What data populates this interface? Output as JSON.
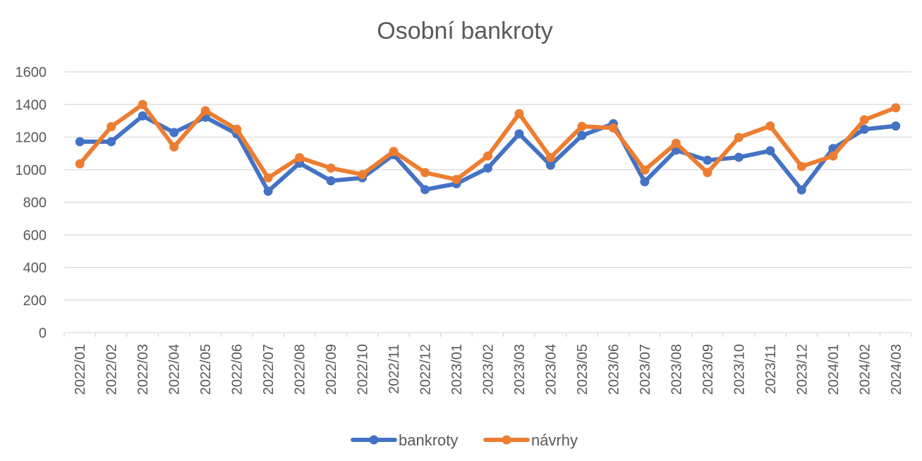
{
  "chart_data": {
    "type": "line",
    "title": "Osobní bankroty",
    "xlabel": "",
    "ylabel": "",
    "ylim": [
      0,
      1600
    ],
    "yticks": [
      0,
      200,
      400,
      600,
      800,
      1000,
      1200,
      1400,
      1600
    ],
    "grid": true,
    "legend_position": "bottom",
    "categories": [
      "2022/01",
      "2022/02",
      "2022/03",
      "2022/04",
      "2022/05",
      "2022/06",
      "2022/07",
      "2022/08",
      "2022/09",
      "2022/10",
      "2022/11",
      "2022/12",
      "2023/01",
      "2023/02",
      "2023/03",
      "2023/04",
      "2023/05",
      "2023/06",
      "2023/07",
      "2023/08",
      "2023/09",
      "2023/10",
      "2023/11",
      "2023/12",
      "2024/01",
      "2024/02",
      "2024/03"
    ],
    "series": [
      {
        "name": "bankroty",
        "color": "#4472C4",
        "values": [
          1172,
          1172,
          1330,
          1228,
          1322,
          1220,
          868,
          1040,
          932,
          950,
          1092,
          878,
          914,
          1010,
          1220,
          1028,
          1210,
          1282,
          926,
          1120,
          1058,
          1076,
          1116,
          876,
          1130,
          1248,
          1268
        ]
      },
      {
        "name": "návrhy",
        "color": "#ED7D31",
        "values": [
          1036,
          1264,
          1400,
          1140,
          1362,
          1248,
          950,
          1074,
          1010,
          970,
          1112,
          982,
          940,
          1084,
          1344,
          1074,
          1266,
          1256,
          998,
          1162,
          982,
          1198,
          1268,
          1020,
          1084,
          1306,
          1380
        ]
      }
    ]
  }
}
